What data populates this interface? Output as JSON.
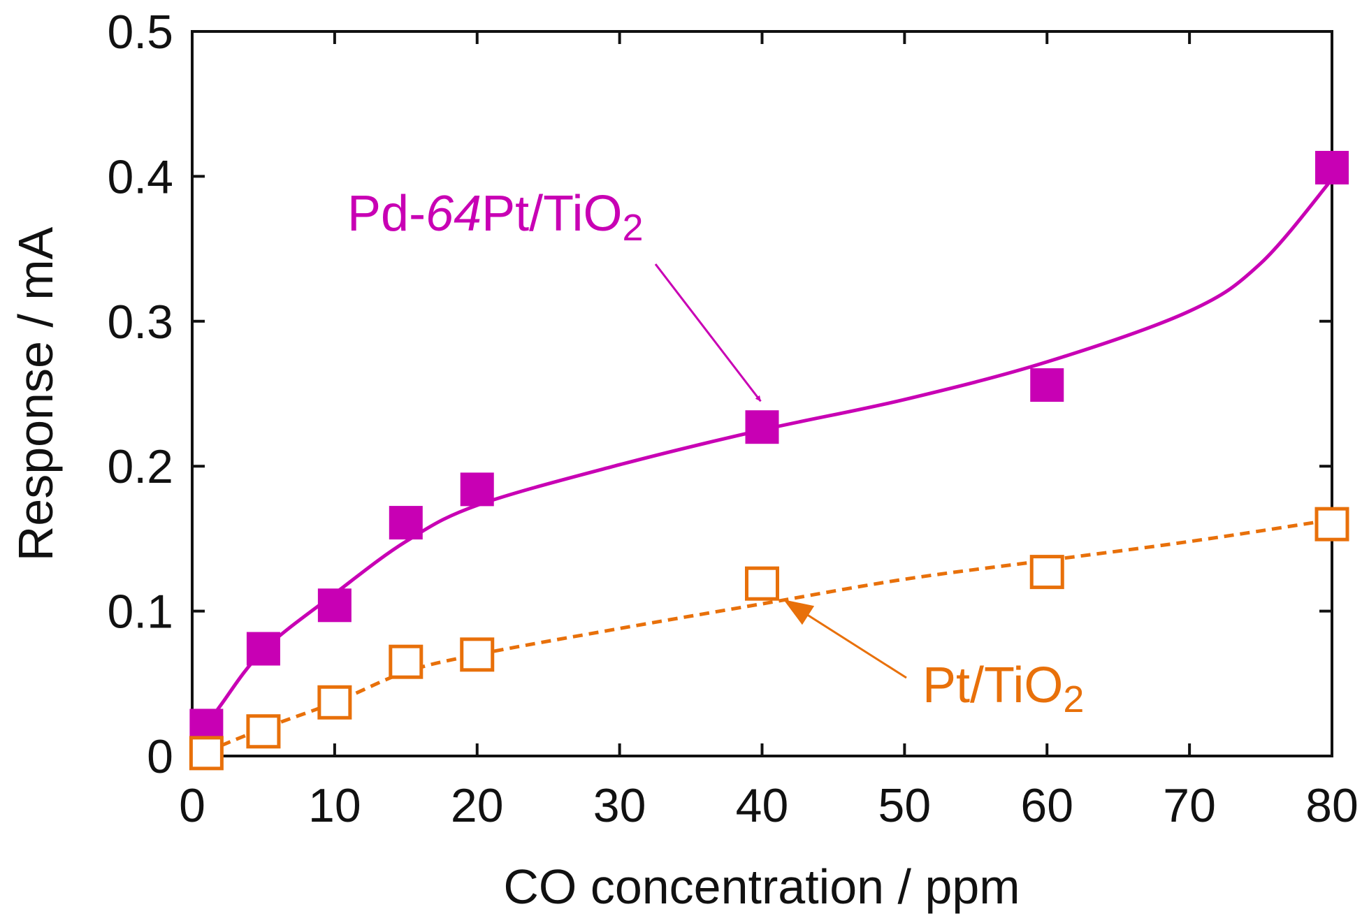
{
  "chart_data": {
    "type": "scatter",
    "title": "",
    "xlabel": "CO concentration / ppm",
    "ylabel": "Response / mA",
    "xlim": [
      0,
      80
    ],
    "ylim": [
      0,
      0.5
    ],
    "x_ticks": [
      0,
      10,
      20,
      30,
      40,
      50,
      60,
      70,
      80
    ],
    "x_tick_labels": [
      "0",
      "10",
      "20",
      "30",
      "40",
      "50",
      "60",
      "70",
      "80"
    ],
    "y_ticks": [
      0,
      0.1,
      0.2,
      0.3,
      0.4,
      0.5
    ],
    "y_tick_labels": [
      "0",
      "0.1",
      "0.2",
      "0.3",
      "0.4",
      "0.5"
    ],
    "grid": false,
    "legend": "none (series labelled by arrow annotations)",
    "series": [
      {
        "name": "Pd-64Pt/TiO2",
        "label_parts": {
          "prefix": "Pd-",
          "italic": "64",
          "main": "Pt/TiO",
          "subscript": "2"
        },
        "marker": "filled-square",
        "line": "solid",
        "color": "#c800b4",
        "x": [
          1,
          5,
          10,
          15,
          20,
          40,
          60,
          80
        ],
        "y": [
          0.021,
          0.074,
          0.104,
          0.161,
          0.184,
          0.227,
          0.256,
          0.406
        ],
        "fit_curve": {
          "x": [
            1,
            2,
            5,
            10,
            15,
            20,
            30,
            40,
            50,
            60,
            70,
            75,
            80
          ],
          "y": [
            0.02,
            0.035,
            0.073,
            0.112,
            0.148,
            0.173,
            0.201,
            0.225,
            0.246,
            0.272,
            0.307,
            0.34,
            0.398
          ]
        }
      },
      {
        "name": "Pt/TiO2",
        "label_parts": {
          "prefix": "",
          "italic": "",
          "main": "Pt/TiO",
          "subscript": "2"
        },
        "marker": "open-square",
        "line": "dashed",
        "color": "#e8700a",
        "x": [
          1,
          5,
          10,
          15,
          20,
          40,
          60,
          80
        ],
        "y": [
          0.002,
          0.017,
          0.037,
          0.065,
          0.07,
          0.119,
          0.127,
          0.16
        ],
        "fit_curve": {
          "x": [
            1,
            5,
            10,
            15,
            20,
            30,
            40,
            50,
            60,
            70,
            80
          ],
          "y": [
            0.003,
            0.019,
            0.037,
            0.058,
            0.07,
            0.088,
            0.105,
            0.122,
            0.135,
            0.148,
            0.163
          ]
        }
      }
    ],
    "annotations": [
      {
        "series": "Pd-64Pt/TiO2",
        "text": "Pd-64Pt/TiO2",
        "points_to": [
          40,
          0.24
        ]
      },
      {
        "series": "Pt/TiO2",
        "text": "Pt/TiO2",
        "points_to": [
          41.5,
          0.106
        ]
      }
    ]
  }
}
